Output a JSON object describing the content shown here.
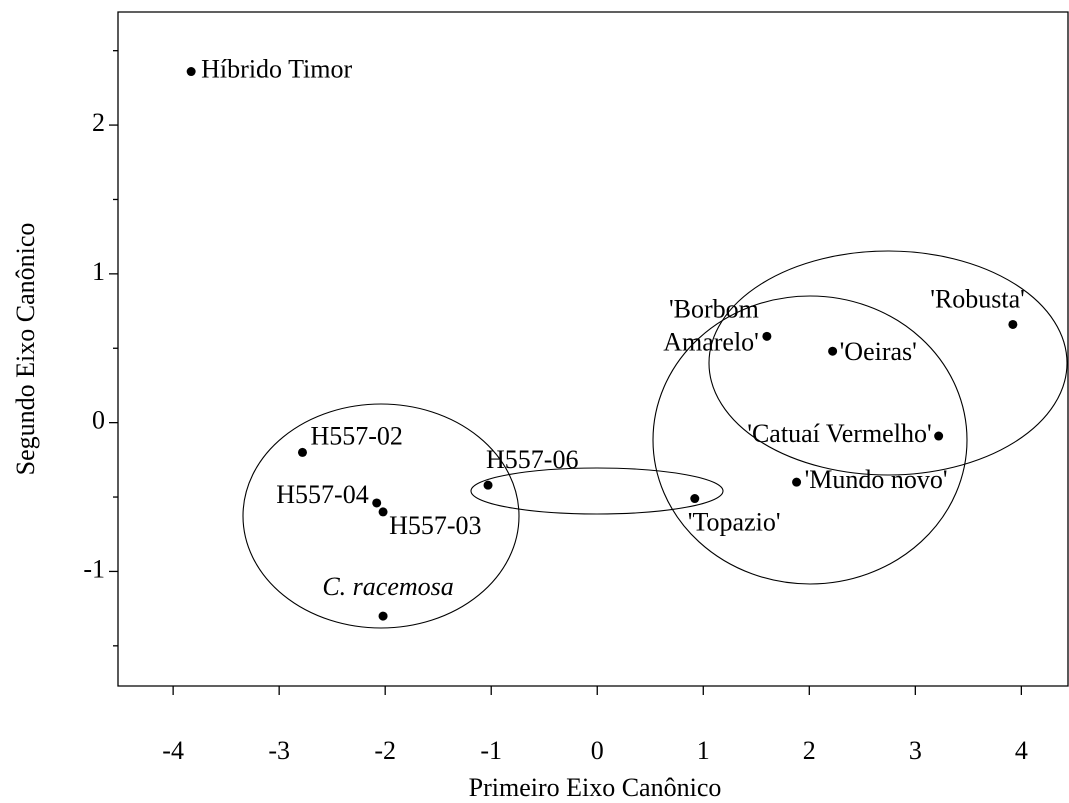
{
  "chart_data": {
    "type": "scatter",
    "x_label": "Primeiro Eixo Canônico",
    "y_label": "Segundo Eixo Canônico",
    "labels": [
      "Híbrido Timor",
      "H557-02",
      "H557-04",
      "H557-03",
      "C. racemosa",
      "H557-06",
      "'Topazio'",
      "'Borbom Amarelo'",
      "'Oeiras'",
      "'Robusta'",
      "'Catuaí Vermelho'",
      "'Mundo novo'"
    ],
    "x": [
      -3.83,
      -2.78,
      -2.08,
      -2.02,
      -2.02,
      -1.03,
      0.92,
      1.6,
      2.22,
      3.92,
      3.22,
      1.88
    ],
    "y": [
      2.36,
      -0.2,
      -0.54,
      -0.6,
      -1.3,
      -0.42,
      -0.51,
      0.58,
      0.48,
      0.66,
      -0.09,
      -0.4
    ],
    "color": "#000000",
    "xlim": [
      -4.52,
      4.44
    ],
    "ylim": [
      -1.77,
      2.76
    ],
    "xticks": [
      -4,
      -3,
      -2,
      -1,
      0,
      1,
      2,
      3,
      4
    ],
    "yticks": [
      -1,
      0,
      1,
      2
    ],
    "yminorticks": [
      -1.5,
      -0.5,
      0.5,
      1.5,
      2.5
    ]
  }
}
